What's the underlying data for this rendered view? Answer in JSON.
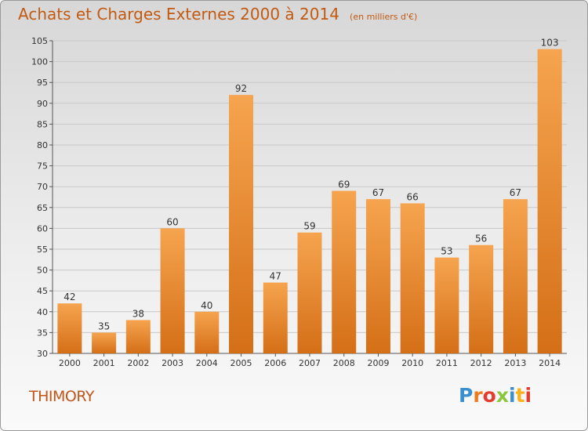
{
  "header": {
    "title": "Achats et Charges Externes 2000 à 2014",
    "subtitle": "(en milliers d'€)"
  },
  "footer": {
    "commune": "THIMORY",
    "logo_text": "Proxiti"
  },
  "colors": {
    "title": "#c25a12",
    "bar_top": "#f6a44f",
    "bar_bottom": "#d46f17",
    "grid": "#c8c8c8",
    "logo": [
      "#3a8fd0",
      "#f07b1e",
      "#e43d2f",
      "#8cc63f",
      "#3a8fd0",
      "#f7b21e",
      "#e43d2f"
    ]
  },
  "chart_data": {
    "type": "bar",
    "categories": [
      "2000",
      "2001",
      "2002",
      "2003",
      "2004",
      "2005",
      "2006",
      "2007",
      "2008",
      "2009",
      "2010",
      "2011",
      "2012",
      "2013",
      "2014"
    ],
    "values": [
      42,
      35,
      38,
      60,
      40,
      92,
      47,
      59,
      69,
      67,
      66,
      53,
      56,
      67,
      103
    ],
    "data_labels": [
      "42",
      "35",
      "38",
      "60",
      "40",
      "92",
      "47",
      "59",
      "69",
      "67",
      "66",
      "53",
      "56",
      "67",
      "103"
    ],
    "yticks": [
      30,
      35,
      40,
      45,
      50,
      55,
      60,
      65,
      70,
      75,
      80,
      85,
      90,
      95,
      100,
      105
    ],
    "ylim": [
      30,
      105
    ],
    "grid": true,
    "xlabel": "",
    "ylabel": ""
  }
}
